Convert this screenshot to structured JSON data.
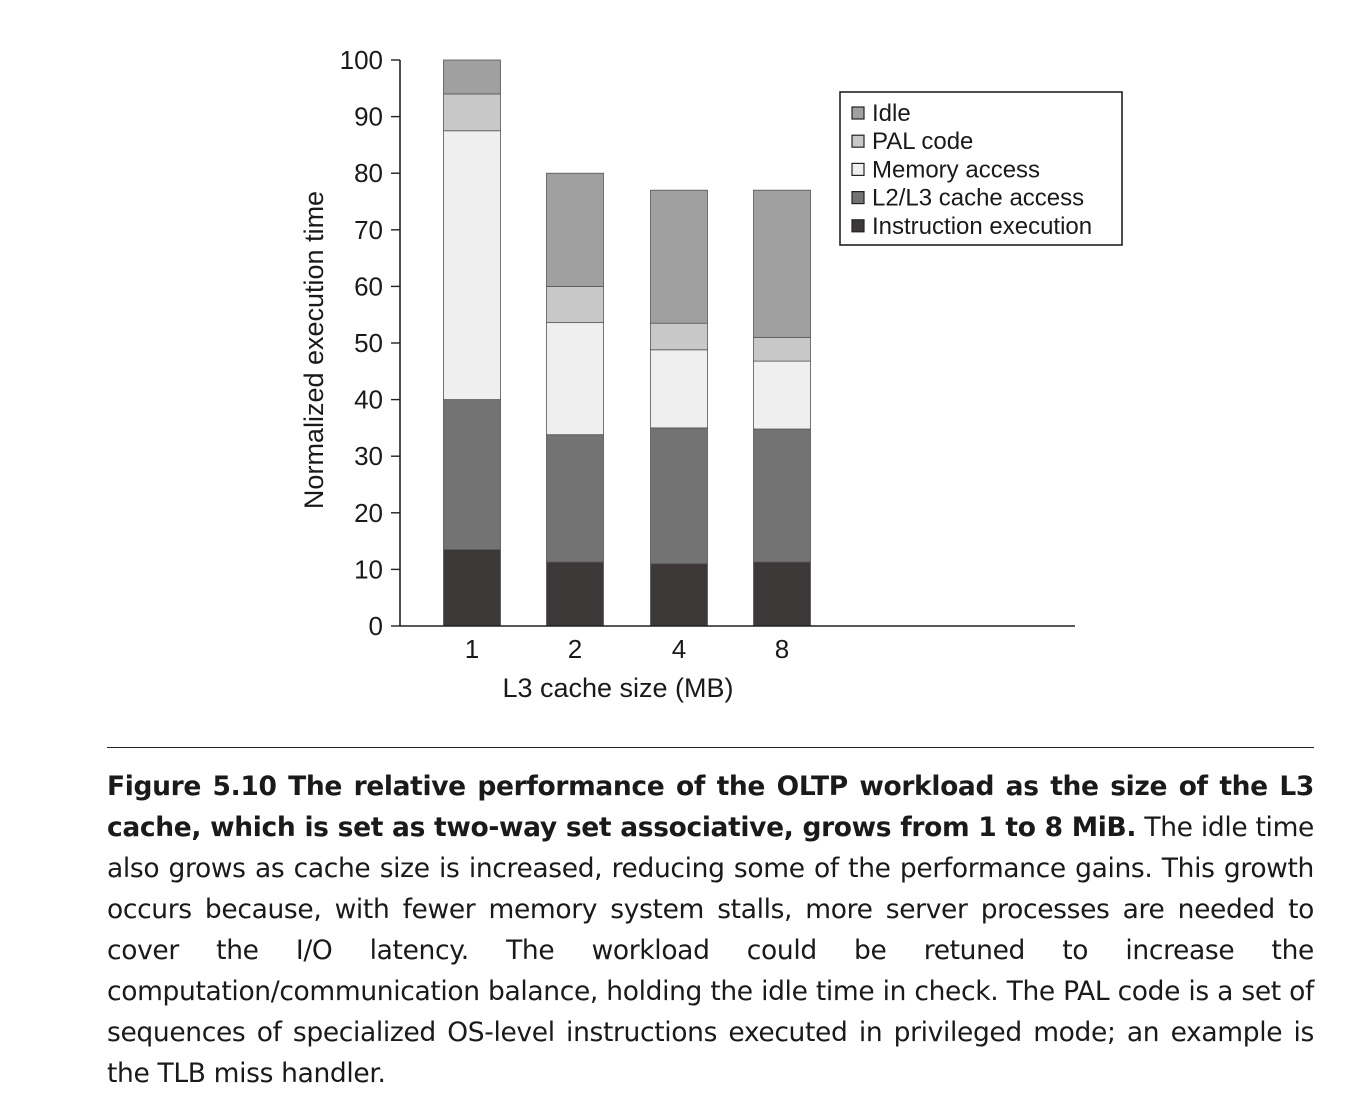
{
  "chart_data": {
    "type": "bar",
    "stacked": true,
    "categories": [
      "1",
      "2",
      "4",
      "8"
    ],
    "xlabel": "L3 cache size (MB)",
    "ylabel": "Normalized execution time",
    "ylim": [
      0,
      100
    ],
    "yticks": [
      "0",
      "10",
      "20",
      "30",
      "40",
      "50",
      "60",
      "70",
      "80",
      "90",
      "100"
    ],
    "grid": false,
    "legend_position": "top-right",
    "legend_order": [
      "Idle",
      "PAL code",
      "Memory access",
      "L2/L3 cache access",
      "Instruction execution"
    ],
    "series": [
      {
        "name": "Instruction execution",
        "color": "#3d3838",
        "values": [
          13.5,
          11.3,
          11,
          11.3
        ]
      },
      {
        "name": "L2/L3 cache access",
        "color": "#737373",
        "values": [
          26.5,
          22.5,
          24,
          23.5
        ]
      },
      {
        "name": "Memory access",
        "color": "#efefef",
        "values": [
          47.5,
          19.8,
          13.8,
          12
        ]
      },
      {
        "name": "PAL code",
        "color": "#c8c8c8",
        "values": [
          6.5,
          6.4,
          4.7,
          4.2
        ]
      },
      {
        "name": "Idle",
        "color": "#a0a0a0",
        "values": [
          6,
          20,
          23.5,
          26
        ]
      }
    ]
  },
  "caption": {
    "lead": "Figure 5.10  The relative performance of the OLTP workload as the size of the L3 cache, which is set as two-way set associative, grows from 1 to 8 MiB.",
    "body": " The idle time also grows as cache size is increased, reducing some of the performance gains. This growth occurs because, with fewer memory system stalls, more server processes are needed to cover the I/O latency. The workload could be retuned to increase the computation/communication balance, holding the idle time in check. The PAL code is a set of sequences of specialized OS-level instructions executed in privileged mode; an example is the TLB miss handler."
  }
}
